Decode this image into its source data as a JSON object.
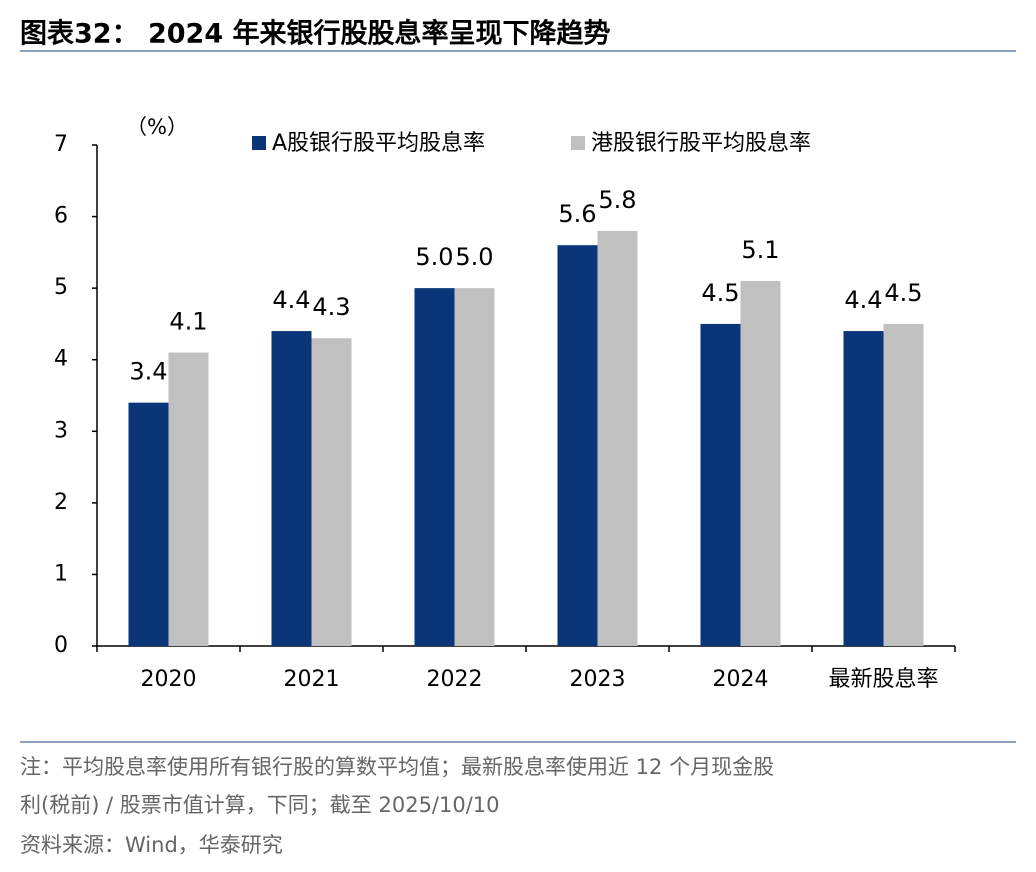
{
  "chart_data": {
    "type": "bar",
    "title": "图表32： 2024 年来银行股股息率呈现下降趋势",
    "y_label": "（%）",
    "categories": [
      "2020",
      "2021",
      "2022",
      "2023",
      "2024",
      "最新股息率"
    ],
    "series": [
      {
        "name": "A股银行股平均股息率",
        "color": "#0a3578",
        "values": [
          3.4,
          4.4,
          5.0,
          5.6,
          4.5,
          4.4
        ],
        "value_labels": [
          "3.4",
          "4.4",
          "5.0",
          "5.6",
          "4.5",
          "4.4"
        ]
      },
      {
        "name": "港股银行股平均股息率",
        "color": "#c0c0c0",
        "values": [
          4.1,
          4.3,
          5.0,
          5.8,
          5.1,
          4.5
        ],
        "value_labels": [
          "4.1",
          "4.3",
          "5.0",
          "5.8",
          "5.1",
          "4.5"
        ]
      }
    ],
    "ylim": [
      0,
      7
    ],
    "yticks": [
      0,
      1,
      2,
      3,
      4,
      5,
      6,
      7
    ],
    "grid": false,
    "legend": "top"
  },
  "footer": {
    "notes": [
      "注：平均股息率使用所有银行股的算数平均值；最新股息率使用近 12 个月现金股",
      "利(税前) / 股票市值计算，下同；截至 2025/10/10"
    ],
    "source": "资料来源：Wind，华泰研究"
  }
}
